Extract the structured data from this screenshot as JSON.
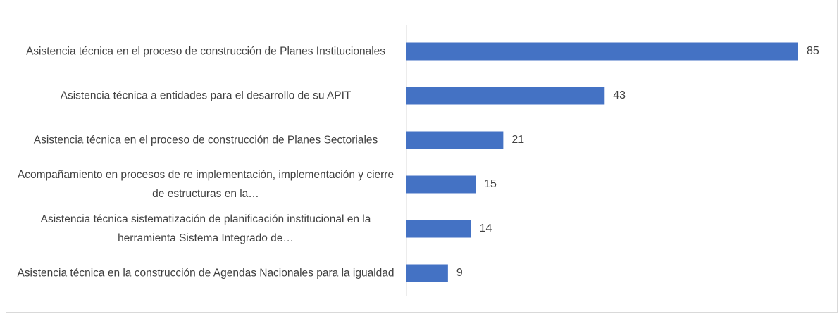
{
  "chart_data": {
    "type": "bar",
    "orientation": "horizontal",
    "categories": [
      "Asistencia técnica en el proceso de construcción de Planes Institucionales",
      "Asistencia técnica a entidades para el desarrollo de su APIT",
      "Asistencia técnica en el proceso de construcción de Planes Sectoriales",
      "Acompañamiento en procesos de re implementación, implementación y cierre de estructuras en la…",
      "Asistencia técnica sistematización de planificación institucional en la herramienta Sistema Integrado de…",
      "Asistencia técnica en la construcción de Agendas Nacionales para la igualdad"
    ],
    "values": [
      85,
      43,
      21,
      15,
      14,
      9
    ],
    "color": "#4472c4"
  }
}
